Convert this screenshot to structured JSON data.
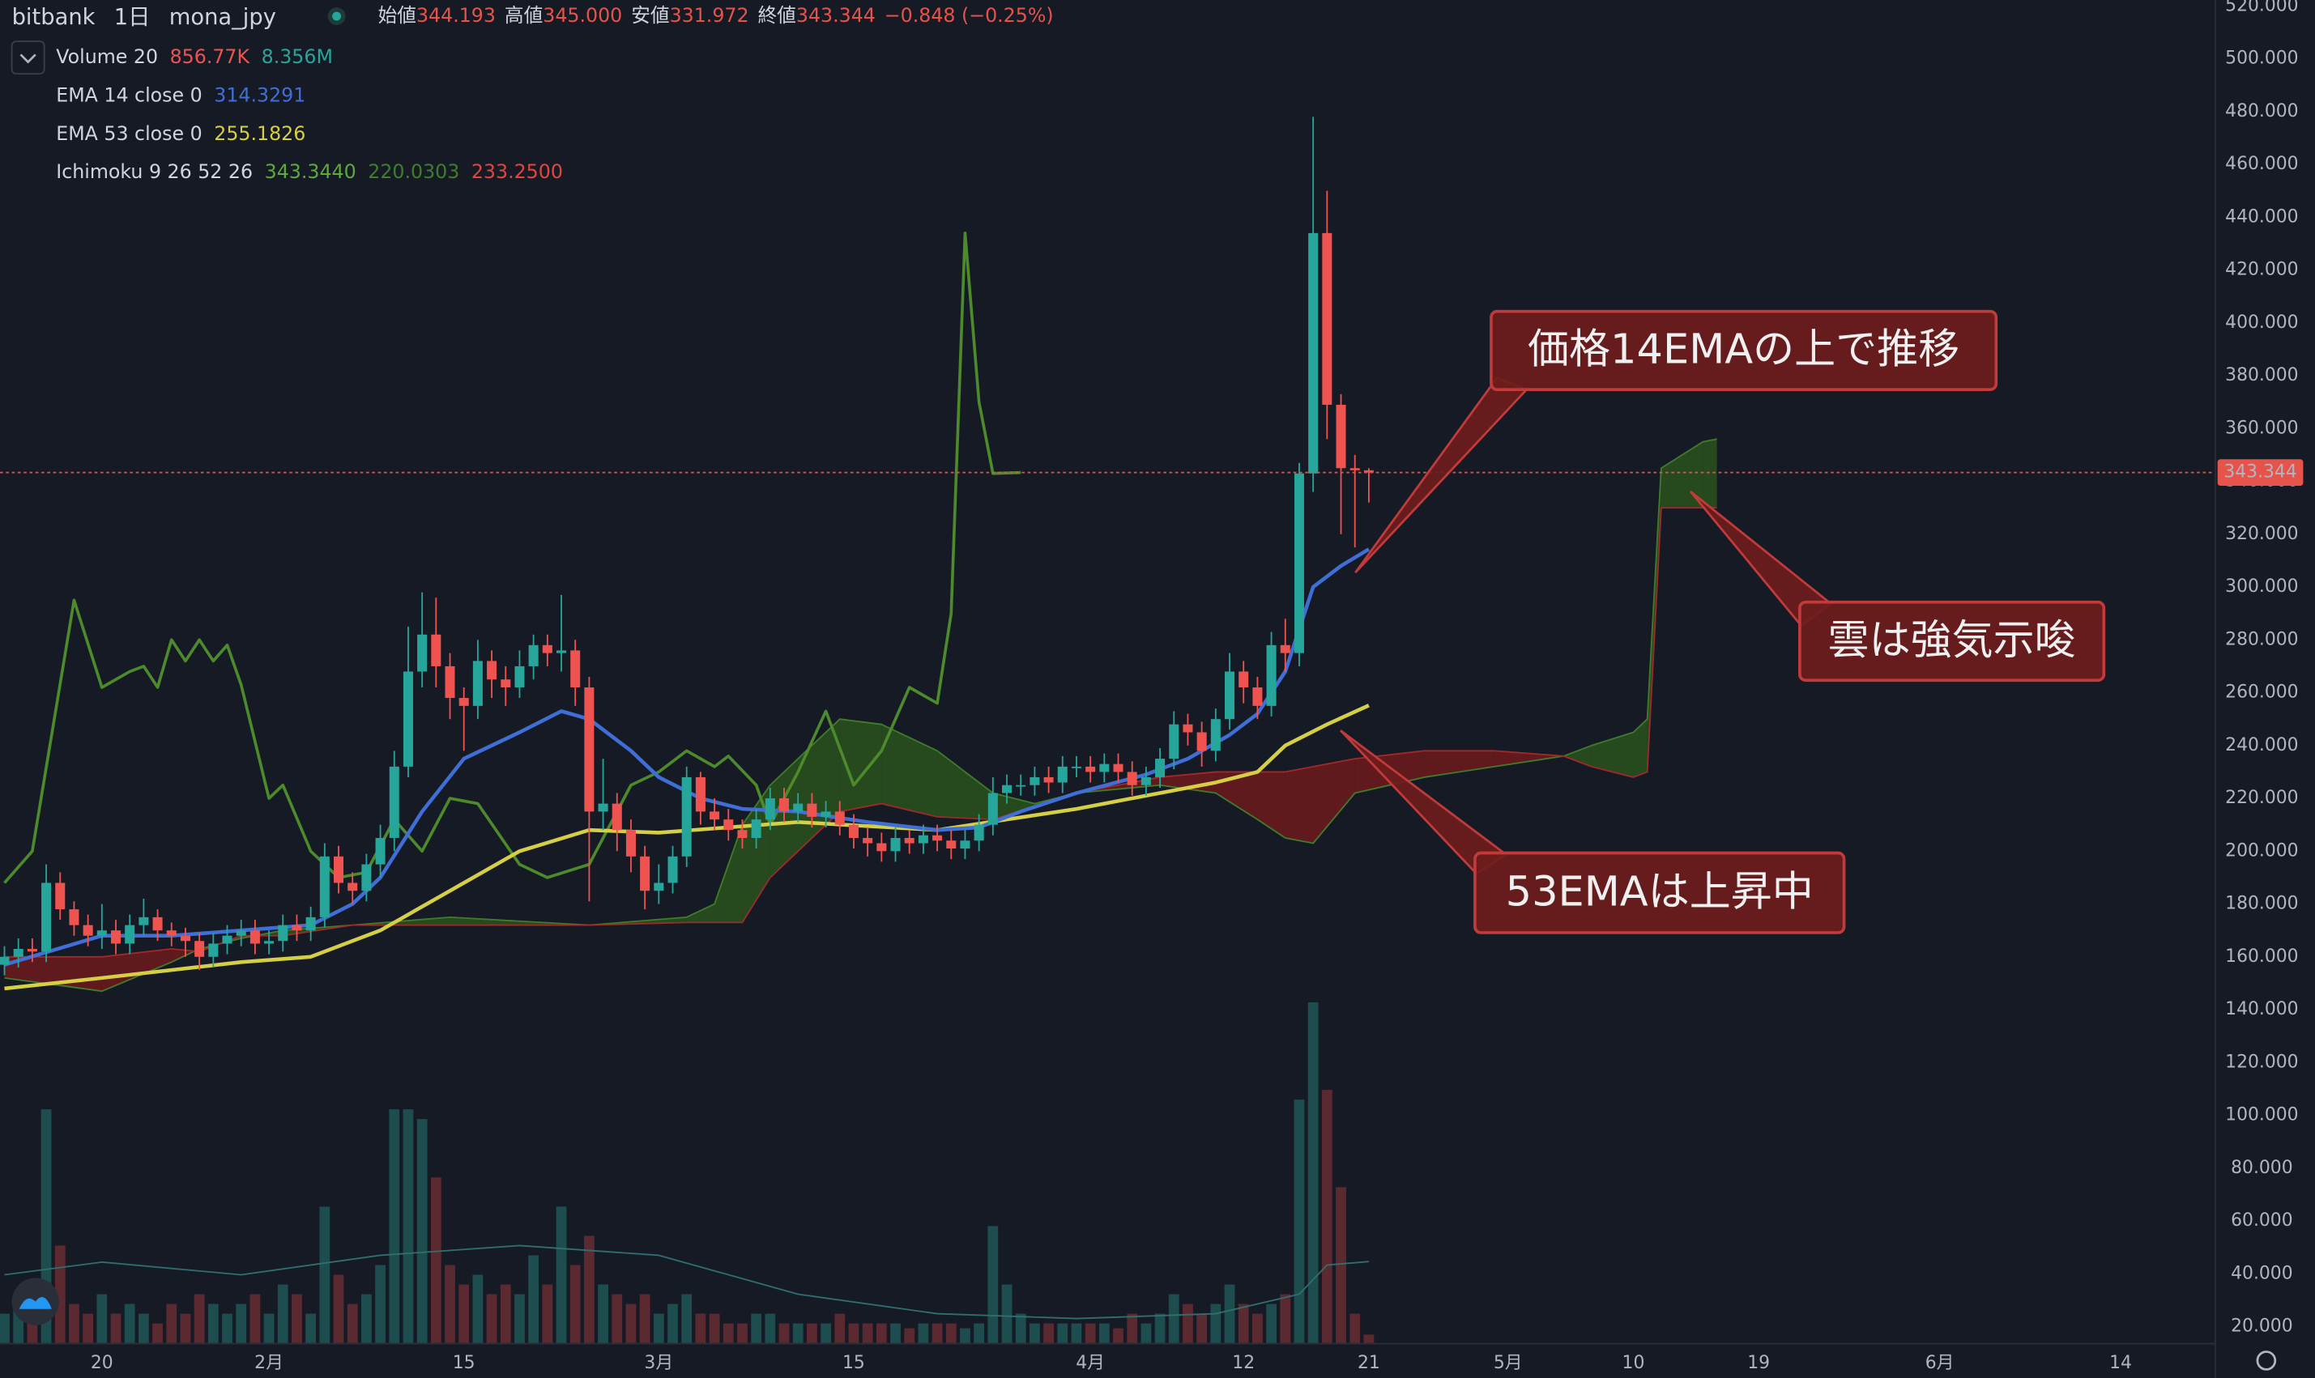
{
  "chart_data": {
    "type": "candlestick",
    "header": {
      "exchange": "bitbank",
      "interval": "1日",
      "symbol": "mona_jpy",
      "ohlc": [
        {
          "label": "始値",
          "value": "344.193"
        },
        {
          "label": "高値",
          "value": "345.000"
        },
        {
          "label": "安値",
          "value": "331.972"
        },
        {
          "label": "終値",
          "value": "343.344"
        }
      ],
      "change": "−0.848 (−0.25%)"
    },
    "xlim": [
      12.68,
      171.75
    ],
    "xticks": [
      {
        "value": 20,
        "label": "20"
      },
      {
        "value": 32,
        "label": "2月"
      },
      {
        "value": 46,
        "label": "15"
      },
      {
        "value": 60,
        "label": "3月"
      },
      {
        "value": 74,
        "label": "15"
      },
      {
        "value": 91,
        "label": "4月"
      },
      {
        "value": 102,
        "label": "12"
      },
      {
        "value": 111,
        "label": "21"
      },
      {
        "value": 121,
        "label": "5月"
      },
      {
        "value": 130,
        "label": "10"
      },
      {
        "value": 139,
        "label": "19"
      },
      {
        "value": 152,
        "label": "6月"
      },
      {
        "value": 165,
        "label": "14"
      }
    ],
    "ylim": [
      13.85,
      522.23
    ],
    "yticks": [
      {
        "value": 20,
        "label": "20.000"
      },
      {
        "value": 40,
        "label": "40.000"
      },
      {
        "value": 60,
        "label": "60.000"
      },
      {
        "value": 80,
        "label": "80.000"
      },
      {
        "value": 100,
        "label": "100.000"
      },
      {
        "value": 120,
        "label": "120.000"
      },
      {
        "value": 140,
        "label": "140.000"
      },
      {
        "value": 160,
        "label": "160.000"
      },
      {
        "value": 180,
        "label": "180.000"
      },
      {
        "value": 200,
        "label": "200.000"
      },
      {
        "value": 220,
        "label": "220.000"
      },
      {
        "value": 240,
        "label": "240.000"
      },
      {
        "value": 260,
        "label": "260.000"
      },
      {
        "value": 280,
        "label": "280.000"
      },
      {
        "value": 300,
        "label": "300.000"
      },
      {
        "value": 320,
        "label": "320.000"
      },
      {
        "value": 340,
        "label": "340.000"
      },
      {
        "value": 360,
        "label": "360.000"
      },
      {
        "value": 380,
        "label": "380.000"
      },
      {
        "value": 400,
        "label": "400.000"
      },
      {
        "value": 420,
        "label": "420.000"
      },
      {
        "value": 440,
        "label": "440.000"
      },
      {
        "value": 460,
        "label": "460.000"
      },
      {
        "value": 480,
        "label": "480.000"
      },
      {
        "value": 500,
        "label": "500.000"
      },
      {
        "value": 520,
        "label": "520.000"
      }
    ],
    "y2lim": [
      0,
      138
    ],
    "x": [
      13,
      14,
      15,
      16,
      17,
      18,
      19,
      20,
      21,
      22,
      23,
      24,
      25,
      26,
      27,
      28,
      29,
      30,
      31,
      32,
      33,
      34,
      35,
      36,
      37,
      38,
      39,
      40,
      41,
      42,
      43,
      44,
      45,
      46,
      47,
      48,
      49,
      50,
      51,
      52,
      53,
      54,
      55,
      56,
      57,
      58,
      59,
      60,
      61,
      62,
      63,
      64,
      65,
      66,
      67,
      68,
      69,
      70,
      71,
      72,
      73,
      74,
      75,
      76,
      77,
      78,
      79,
      80,
      81,
      82,
      83,
      84,
      85,
      86,
      87,
      88,
      89,
      90,
      91,
      92,
      93,
      94,
      95,
      96,
      97,
      98,
      99,
      100,
      101,
      102,
      103,
      104,
      105,
      106,
      107,
      108,
      109,
      110,
      111
    ],
    "open": [
      157,
      160,
      163,
      162,
      188,
      178,
      172,
      168,
      170,
      165,
      172,
      175,
      170,
      168,
      166,
      160,
      165,
      168,
      170,
      165,
      166,
      172,
      170,
      175,
      198,
      188,
      185,
      195,
      205,
      232,
      268,
      282,
      270,
      258,
      255,
      272,
      265,
      262,
      270,
      278,
      275,
      276,
      262,
      215,
      218,
      208,
      198,
      185,
      188,
      198,
      228,
      215,
      212,
      208,
      205,
      212,
      220,
      215,
      218,
      213,
      215,
      210,
      205,
      203,
      200,
      205,
      203,
      206,
      204,
      201,
      204,
      210,
      222,
      225,
      225,
      228,
      226,
      232,
      232,
      230,
      233,
      230,
      225,
      228,
      235,
      248,
      245,
      238,
      250,
      268,
      262,
      255,
      278,
      275,
      343,
      434,
      369,
      345,
      344.193
    ],
    "high": [
      164,
      167,
      167,
      195,
      192,
      181,
      176,
      180,
      174,
      176,
      182,
      178,
      173,
      171,
      169,
      169,
      172,
      174,
      174,
      170,
      176,
      176,
      179,
      203,
      202,
      192,
      199,
      210,
      238,
      285,
      298,
      296,
      275,
      262,
      280,
      276,
      270,
      276,
      282,
      282,
      297,
      280,
      266,
      235,
      222,
      212,
      202,
      195,
      202,
      232,
      230,
      220,
      216,
      212,
      216,
      224,
      224,
      222,
      222,
      219,
      219,
      214,
      209,
      207,
      209,
      208,
      210,
      210,
      208,
      208,
      214,
      228,
      229,
      229,
      232,
      232,
      236,
      236,
      236,
      237,
      237,
      234,
      232,
      239,
      253,
      252,
      249,
      254,
      275,
      272,
      266,
      283,
      288,
      347,
      478,
      450,
      373,
      350,
      345
    ],
    "low": [
      153,
      156,
      158,
      158,
      174,
      168,
      164,
      163,
      161,
      161,
      168,
      166,
      164,
      160,
      155,
      156,
      161,
      164,
      161,
      161,
      162,
      166,
      166,
      171,
      184,
      180,
      181,
      190,
      200,
      228,
      262,
      262,
      250,
      238,
      250,
      258,
      255,
      258,
      265,
      270,
      268,
      255,
      181,
      208,
      200,
      192,
      178,
      180,
      184,
      194,
      210,
      208,
      204,
      201,
      201,
      208,
      211,
      211,
      209,
      209,
      206,
      201,
      198,
      196,
      196,
      199,
      199,
      200,
      197,
      197,
      200,
      206,
      218,
      221,
      221,
      222,
      222,
      228,
      226,
      226,
      226,
      221,
      221,
      224,
      231,
      240,
      232,
      234,
      246,
      256,
      250,
      251,
      268,
      270,
      336,
      356,
      320,
      315,
      331.972
    ],
    "close": [
      160,
      163,
      162,
      188,
      178,
      172,
      168,
      170,
      165,
      172,
      175,
      170,
      168,
      166,
      160,
      165,
      168,
      170,
      165,
      166,
      172,
      170,
      175,
      198,
      188,
      185,
      195,
      205,
      232,
      268,
      282,
      270,
      258,
      255,
      272,
      265,
      262,
      270,
      278,
      275,
      276,
      262,
      215,
      218,
      208,
      198,
      185,
      188,
      198,
      228,
      215,
      212,
      208,
      205,
      212,
      220,
      215,
      218,
      213,
      215,
      210,
      205,
      203,
      200,
      205,
      203,
      206,
      204,
      201,
      204,
      210,
      222,
      225,
      225,
      228,
      226,
      232,
      232,
      230,
      233,
      230,
      225,
      228,
      235,
      248,
      245,
      238,
      250,
      268,
      262,
      255,
      278,
      275,
      343,
      434,
      369,
      345,
      344.193,
      343.344
    ],
    "up_color": "#26a69a",
    "down_color": "#ef5350",
    "last_price": {
      "value": 343.344,
      "label": "343.344",
      "color": "#e5534b"
    },
    "volume": {
      "name": "Volume 20",
      "legend_values": [
        "856.77K",
        "8.356M"
      ],
      "axis": "y2",
      "up_color": "#1e4d50",
      "down_color": "#5b2a30",
      "values": [
        3,
        5,
        4,
        24,
        10,
        4,
        3,
        5,
        3,
        4,
        3,
        2,
        4,
        3,
        5,
        4,
        3,
        4,
        5,
        3,
        6,
        5,
        3,
        14,
        7,
        4,
        5,
        8,
        24,
        24,
        23,
        17,
        8,
        6,
        7,
        5,
        6,
        5,
        9,
        6,
        14,
        8,
        11,
        6,
        5,
        4,
        5,
        3,
        4,
        5,
        3,
        3,
        2,
        2,
        3,
        3,
        2,
        2,
        2,
        2,
        3,
        2,
        2,
        2,
        2,
        1.5,
        2,
        2,
        2,
        1.5,
        2,
        12,
        6,
        3,
        2,
        2,
        2,
        2,
        2,
        2,
        1.5,
        3,
        2,
        3,
        5,
        4,
        3,
        4,
        6,
        4,
        3,
        4,
        5,
        25,
        35,
        26,
        16,
        3,
        0.85677
      ],
      "ma": {
        "color": "#2f6f70",
        "x": [
          13,
          20,
          30,
          40,
          50,
          60,
          70,
          80,
          90,
          100,
          106,
          108,
          111
        ],
        "values": [
          7,
          8.3,
          7,
          9,
          10,
          9,
          5,
          3,
          2.5,
          3,
          5,
          8,
          8.356
        ]
      }
    },
    "indicators": [
      {
        "name": "EMA 14 close 0",
        "legend_values": [
          "314.3291"
        ],
        "color": "#3f6fd6",
        "x": [
          13,
          20,
          25,
          30,
          35,
          38,
          40,
          43,
          46,
          50,
          53,
          55,
          58,
          60,
          63,
          66,
          70,
          75,
          80,
          83,
          86,
          90,
          95,
          98,
          101,
          103,
          105,
          107,
          109,
          111
        ],
        "values": [
          157,
          168,
          168,
          170,
          172,
          180,
          190,
          215,
          235,
          245,
          253,
          250,
          238,
          228,
          220,
          216,
          215,
          211,
          208,
          209,
          215,
          222,
          229,
          235,
          244,
          252,
          268,
          300,
          308,
          314.3291
        ]
      },
      {
        "name": "EMA 53 close 0",
        "legend_values": [
          "255.1826"
        ],
        "color": "#d4cf45",
        "x": [
          13,
          20,
          30,
          35,
          40,
          45,
          50,
          55,
          60,
          70,
          80,
          85,
          90,
          95,
          100,
          103,
          105,
          108,
          111
        ],
        "values": [
          148,
          152,
          158,
          160,
          170,
          185,
          200,
          208,
          207,
          211,
          208,
          212,
          216,
          221,
          226,
          230,
          240,
          248,
          255.1826
        ]
      },
      {
        "name": "Ichimoku 9 26 52 26",
        "legend_values": [
          "343.3440",
          "220.0303",
          "233.2500"
        ],
        "lagging": {
          "color": "#4c8a2b",
          "x": [
            13,
            15,
            18,
            20,
            22,
            23,
            24,
            25,
            26,
            27,
            28,
            29,
            30,
            32,
            33,
            35,
            37,
            39,
            41,
            43,
            45,
            47,
            50,
            52,
            55,
            58,
            60,
            62,
            64,
            65,
            67,
            68,
            70,
            72,
            74,
            76,
            78,
            80,
            81,
            82,
            83,
            84,
            86
          ],
          "values": [
            188,
            200,
            295,
            262,
            268,
            270,
            262,
            280,
            272,
            280,
            272,
            278,
            263,
            220,
            225,
            200,
            190,
            192,
            212,
            200,
            220,
            218,
            195,
            190,
            195,
            225,
            230,
            238,
            232,
            236,
            225,
            210,
            230,
            253,
            225,
            238,
            262,
            256,
            290,
            434,
            370,
            343,
            343.344
          ]
        },
        "cloud": {
          "span_a_color": "#3f7d2a",
          "span_b_color": "#a02a2a",
          "up_fill": "#2c5a1c",
          "down_fill": "#7a1a1a",
          "x": [
            13,
            20,
            25,
            27,
            30,
            33,
            38,
            45,
            55,
            62,
            64,
            66,
            68,
            73,
            76,
            80,
            84,
            87,
            90,
            96,
            100,
            103,
            105,
            107,
            110,
            115,
            120,
            125,
            127,
            130,
            131,
            132,
            135,
            136
          ],
          "span_a": [
            152,
            147,
            158,
            163,
            167,
            170,
            172,
            175,
            172,
            175,
            180,
            210,
            225,
            250,
            248,
            238,
            222,
            218,
            222,
            225,
            222,
            212,
            205,
            203,
            222,
            228,
            232,
            236,
            240,
            245,
            250,
            345,
            355,
            356
          ],
          "span_b": [
            160,
            160,
            163,
            162,
            168,
            168,
            172,
            172,
            172,
            173,
            173,
            173,
            190,
            215,
            218,
            213,
            212,
            217,
            222,
            228,
            230,
            230,
            230,
            232,
            235,
            238,
            238,
            236,
            232,
            228,
            230,
            330,
            330,
            330
          ]
        }
      }
    ],
    "annotations": [
      {
        "text": "価格14EMAの上で推移"
      },
      {
        "text": "雲は強気示唆"
      },
      {
        "text": "53EMAは上昇中"
      }
    ]
  }
}
